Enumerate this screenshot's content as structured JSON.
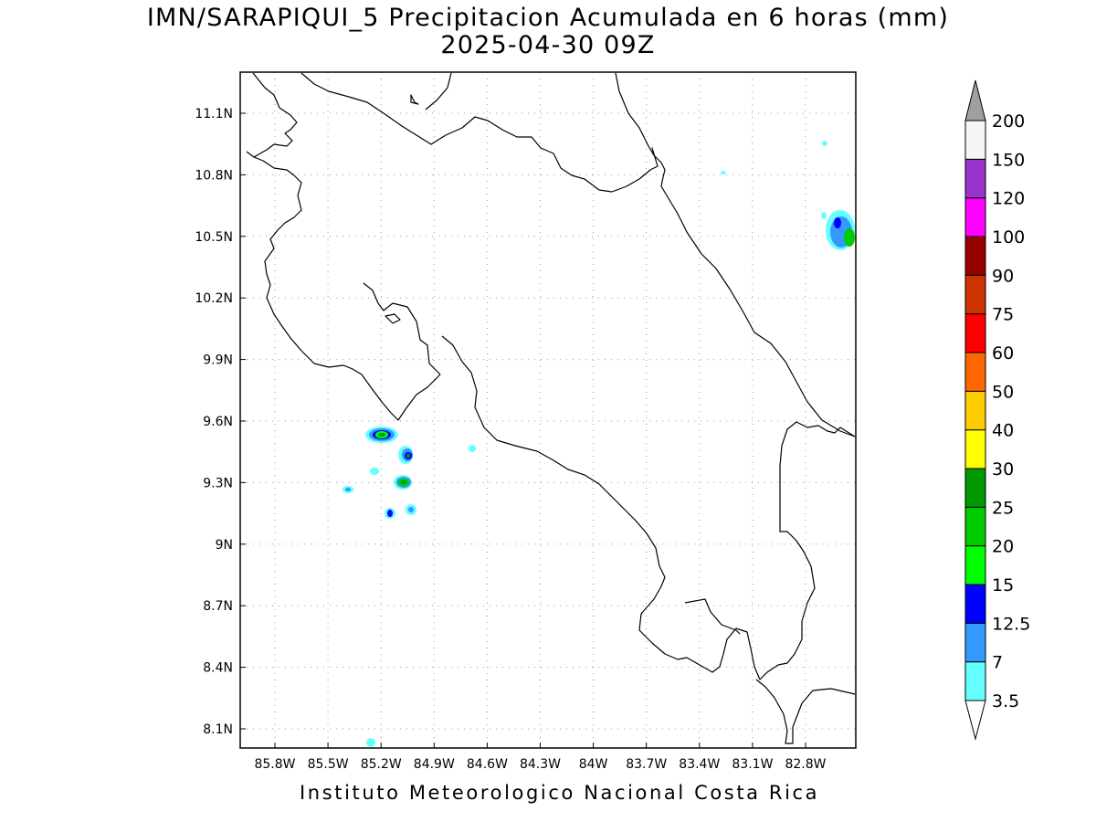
{
  "header": {
    "title_line1": "IMN/SARAPIQUI_5 Precipitacion Acumulada en 6 horas (mm)",
    "title_line2": "2025-04-30 09Z"
  },
  "footer": {
    "credit": "Instituto Meteorologico Nacional Costa Rica"
  },
  "map": {
    "lat_ticks": [
      "11.1N",
      "10.8N",
      "10.5N",
      "10.2N",
      "9.9N",
      "9.6N",
      "9.3N",
      "9N",
      "8.7N",
      "8.4N",
      "8.1N"
    ],
    "lon_ticks": [
      "85.8W",
      "85.5W",
      "85.2W",
      "84.9W",
      "84.6W",
      "84.3W",
      "84W",
      "83.7W",
      "83.4W",
      "83.1W",
      "82.8W"
    ],
    "coastline_color": "#000000",
    "gridline_style": "dotted gray"
  },
  "colorbar": {
    "labels": [
      "3.5",
      "7",
      "12.5",
      "15",
      "20",
      "25",
      "30",
      "40",
      "50",
      "60",
      "75",
      "90",
      "100",
      "120",
      "150",
      "200"
    ],
    "colors": [
      "#66ffff",
      "#3399ff",
      "#0000ff",
      "#00ff00",
      "#00cc00",
      "#009900",
      "#ffff00",
      "#ffcc00",
      "#ff6600",
      "#ff0000",
      "#cc3300",
      "#990000",
      "#ff00ff",
      "#9933cc",
      "#f5f5f5"
    ],
    "over_color": "#a0a0a0",
    "under_color": "#ffffff"
  }
}
